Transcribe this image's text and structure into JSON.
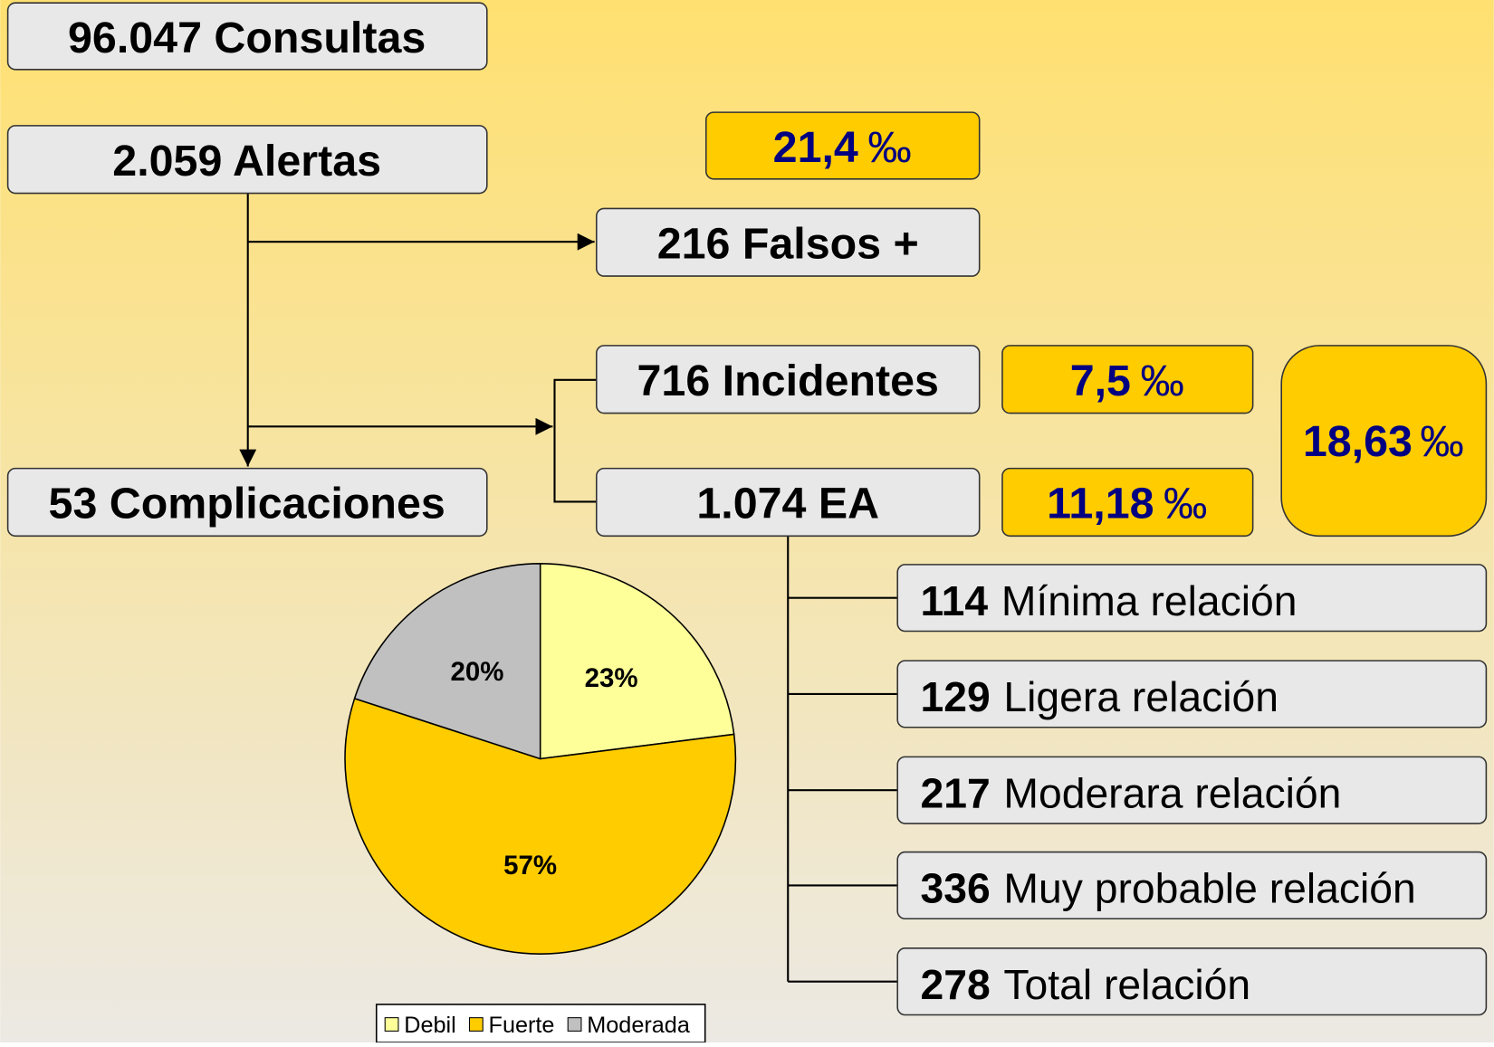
{
  "nodes": {
    "consultas": "96.047 Consultas",
    "alertas": "2.059 Alertas",
    "falsos": "216 Falsos +",
    "incidentes": "716 Incidentes",
    "complicaciones": "53 Complicaciones",
    "ea": "1.074 EA"
  },
  "rates": {
    "falsos": {
      "value": "21,4",
      "unit": "‰"
    },
    "incidentes": {
      "value": "7,5",
      "unit": "‰"
    },
    "ea": {
      "value": "11,18",
      "unit": "‰"
    },
    "total": {
      "value": "18,63",
      "unit": "‰"
    }
  },
  "ea_breakdown": [
    {
      "count": "114",
      "label": "Mínima relación"
    },
    {
      "count": "129",
      "label": "Ligera relación"
    },
    {
      "count": "217",
      "label": "Moderara relación"
    },
    {
      "count": "336",
      "label": "Muy probable relación"
    },
    {
      "count": "278",
      "label": "Total relación"
    }
  ],
  "chart_data": {
    "type": "pie",
    "categories": [
      "Debil",
      "Fuerte",
      "Moderada"
    ],
    "values": [
      23,
      57,
      20
    ],
    "value_labels": [
      "23%",
      "57%",
      "20%"
    ],
    "colors": [
      "#FFFF99",
      "#FFCC00",
      "#C0C0C0"
    ]
  }
}
